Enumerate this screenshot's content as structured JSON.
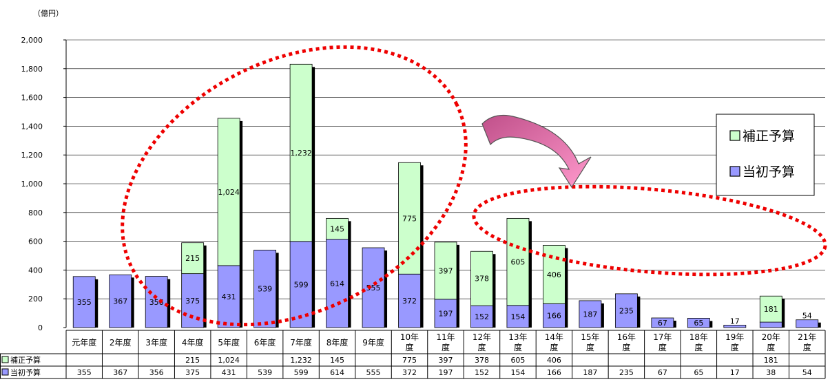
{
  "unit_label": "（億円）",
  "colors": {
    "supplementary": "#ccffcc",
    "initial": "#9999ff",
    "shadow": "#000000",
    "annotation": "#ee0000",
    "arrow": "#ff99cc"
  },
  "chart_data": {
    "type": "bar",
    "stacked": true,
    "categories": [
      "元年度",
      "2年度",
      "3年度",
      "4年度",
      "5年度",
      "6年度",
      "7年度",
      "8年度",
      "9年度",
      "10年度",
      "11年度",
      "12年度",
      "13年度",
      "14年度",
      "15年度",
      "16年度",
      "17年度",
      "18年度",
      "19年度",
      "20年度",
      "21年度"
    ],
    "series": [
      {
        "name": "当初予算",
        "key": "initial",
        "values": [
          355,
          367,
          356,
          375,
          431,
          539,
          599,
          614,
          555,
          372,
          197,
          152,
          154,
          166,
          187,
          235,
          67,
          65,
          17,
          38,
          54
        ]
      },
      {
        "name": "補正予算",
        "key": "supplementary",
        "values": [
          null,
          null,
          null,
          215,
          1024,
          null,
          1232,
          145,
          null,
          775,
          397,
          378,
          605,
          406,
          null,
          null,
          null,
          null,
          null,
          181,
          null
        ]
      }
    ],
    "ylim": [
      0,
      2000
    ],
    "yticks": [
      0,
      200,
      400,
      600,
      800,
      1000,
      1200,
      1400,
      1600,
      1800,
      2000
    ],
    "ytick_labels": [
      "0",
      "200",
      "400",
      "600",
      "800",
      "1,000",
      "1,200",
      "1,400",
      "1,600",
      "1,800",
      "2,000"
    ],
    "legend": {
      "placement": "right",
      "entries": [
        "補正予算",
        "当初予算"
      ]
    },
    "data_table": {
      "rows": [
        {
          "label": "補正予算",
          "key": "supplementary",
          "cells": [
            "",
            "",
            "",
            "215",
            "1,024",
            "",
            "1,232",
            "145",
            "",
            "775",
            "397",
            "378",
            "605",
            "406",
            "",
            "",
            "",
            "",
            "",
            "181",
            ""
          ]
        },
        {
          "label": "当初予算",
          "key": "initial",
          "cells": [
            "355",
            "367",
            "356",
            "375",
            "431",
            "539",
            "599",
            "614",
            "555",
            "372",
            "197",
            "152",
            "154",
            "166",
            "187",
            "235",
            "67",
            "65",
            "17",
            "38",
            "54"
          ]
        }
      ]
    },
    "annotations": [
      "dotted-ellipse-left",
      "arrow",
      "dotted-ellipse-right"
    ]
  }
}
